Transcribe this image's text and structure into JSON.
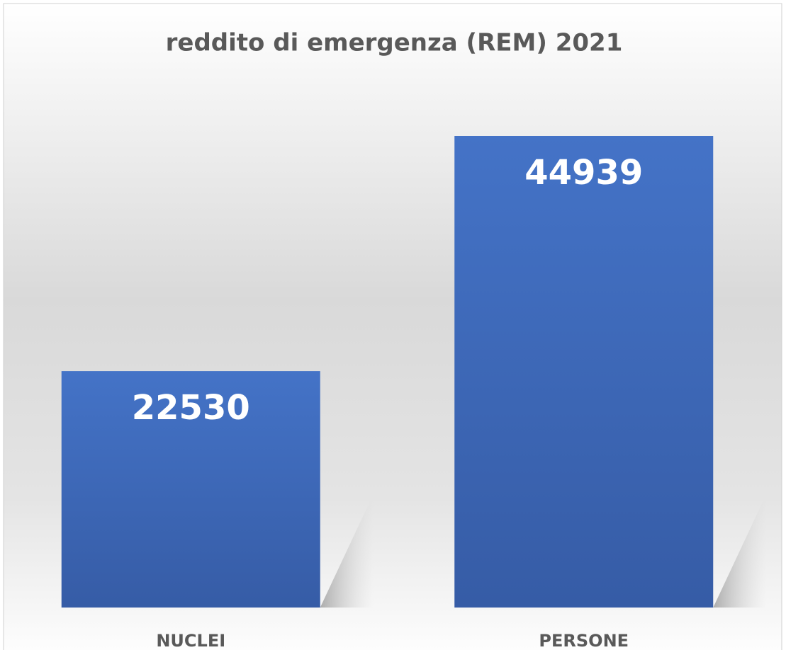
{
  "chart_data": {
    "type": "bar",
    "title": "reddito di emergenza (REM) 2021",
    "categories": [
      "NUCLEI",
      "PERSONE"
    ],
    "values": [
      22530,
      44939
    ],
    "color": "#4472c4"
  }
}
